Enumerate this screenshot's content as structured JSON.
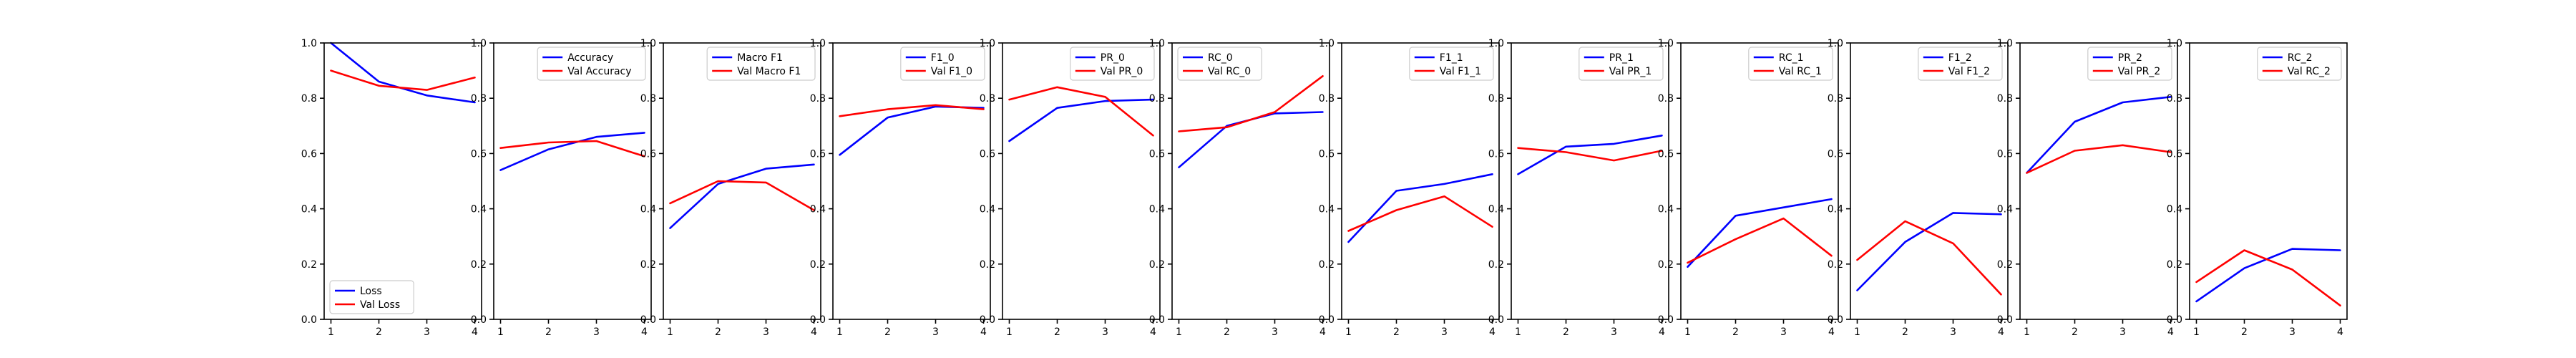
{
  "figure": {
    "colors": {
      "train": "#0000ff",
      "val": "#ff0000"
    }
  },
  "chart_data": [
    {
      "type": "line",
      "x": [
        1,
        2,
        3,
        4
      ],
      "xticks": [
        "1",
        "2",
        "3",
        "4"
      ],
      "ylim": [
        0,
        1.0
      ],
      "yticks": [
        "0.0",
        "0.2",
        "0.4",
        "0.6",
        "0.8",
        "1.0"
      ],
      "legend": "lower-left",
      "series": [
        {
          "name": "Loss",
          "values": [
            1.0,
            0.86,
            0.81,
            0.785
          ]
        },
        {
          "name": "Val Loss",
          "values": [
            0.9,
            0.845,
            0.83,
            0.875
          ]
        }
      ]
    },
    {
      "type": "line",
      "x": [
        1,
        2,
        3,
        4
      ],
      "xticks": [
        "1",
        "2",
        "3",
        "4"
      ],
      "ylim": [
        0,
        1.0
      ],
      "yticks": [
        "0.0",
        "0.2",
        "0.4",
        "0.6",
        "0.8",
        "1.0"
      ],
      "legend": "upper-right",
      "series": [
        {
          "name": "Accuracy",
          "values": [
            0.54,
            0.615,
            0.66,
            0.675
          ]
        },
        {
          "name": "Val Accuracy",
          "values": [
            0.62,
            0.64,
            0.645,
            0.59
          ]
        }
      ]
    },
    {
      "type": "line",
      "x": [
        1,
        2,
        3,
        4
      ],
      "xticks": [
        "1",
        "2",
        "3",
        "4"
      ],
      "ylim": [
        0,
        1.0
      ],
      "yticks": [
        "0.0",
        "0.2",
        "0.4",
        "0.6",
        "0.8",
        "1.0"
      ],
      "legend": "upper-right",
      "series": [
        {
          "name": "Macro F1",
          "values": [
            0.33,
            0.49,
            0.545,
            0.56
          ]
        },
        {
          "name": "Val Macro F1",
          "values": [
            0.42,
            0.5,
            0.495,
            0.395
          ]
        }
      ]
    },
    {
      "type": "line",
      "x": [
        1,
        2,
        3,
        4
      ],
      "xticks": [
        "1",
        "2",
        "3",
        "4"
      ],
      "ylim": [
        0,
        1.0
      ],
      "yticks": [
        "0.0",
        "0.2",
        "0.4",
        "0.6",
        "0.8",
        "1.0"
      ],
      "legend": "upper-right",
      "series": [
        {
          "name": "F1_0",
          "values": [
            0.595,
            0.73,
            0.77,
            0.765
          ]
        },
        {
          "name": "Val F1_0",
          "values": [
            0.735,
            0.76,
            0.775,
            0.76
          ]
        }
      ]
    },
    {
      "type": "line",
      "x": [
        1,
        2,
        3,
        4
      ],
      "xticks": [
        "1",
        "2",
        "3",
        "4"
      ],
      "ylim": [
        0,
        1.0
      ],
      "yticks": [
        "0.0",
        "0.2",
        "0.4",
        "0.6",
        "0.8",
        "1.0"
      ],
      "legend": "upper-right",
      "series": [
        {
          "name": "PR_0",
          "values": [
            0.645,
            0.765,
            0.79,
            0.795
          ]
        },
        {
          "name": "Val PR_0",
          "values": [
            0.795,
            0.84,
            0.805,
            0.665
          ]
        }
      ]
    },
    {
      "type": "line",
      "x": [
        1,
        2,
        3,
        4
      ],
      "xticks": [
        "1",
        "2",
        "3",
        "4"
      ],
      "ylim": [
        0,
        1.0
      ],
      "yticks": [
        "0.0",
        "0.2",
        "0.4",
        "0.6",
        "0.8",
        "1.0"
      ],
      "legend": "upper-left",
      "series": [
        {
          "name": "RC_0",
          "values": [
            0.55,
            0.7,
            0.745,
            0.75
          ]
        },
        {
          "name": "Val RC_0",
          "values": [
            0.68,
            0.695,
            0.75,
            0.88
          ]
        }
      ]
    },
    {
      "type": "line",
      "x": [
        1,
        2,
        3,
        4
      ],
      "xticks": [
        "1",
        "2",
        "3",
        "4"
      ],
      "ylim": [
        0,
        1.0
      ],
      "yticks": [
        "0.0",
        "0.2",
        "0.4",
        "0.6",
        "0.8",
        "1.0"
      ],
      "legend": "upper-right",
      "series": [
        {
          "name": "F1_1",
          "values": [
            0.28,
            0.465,
            0.49,
            0.525
          ]
        },
        {
          "name": "Val F1_1",
          "values": [
            0.32,
            0.395,
            0.445,
            0.335
          ]
        }
      ]
    },
    {
      "type": "line",
      "x": [
        1,
        2,
        3,
        4
      ],
      "xticks": [
        "1",
        "2",
        "3",
        "4"
      ],
      "ylim": [
        0,
        1.0
      ],
      "yticks": [
        "0.0",
        "0.2",
        "0.4",
        "0.6",
        "0.8",
        "1.0"
      ],
      "legend": "upper-right",
      "series": [
        {
          "name": "PR_1",
          "values": [
            0.525,
            0.625,
            0.635,
            0.665
          ]
        },
        {
          "name": "Val PR_1",
          "values": [
            0.62,
            0.605,
            0.575,
            0.61
          ]
        }
      ]
    },
    {
      "type": "line",
      "x": [
        1,
        2,
        3,
        4
      ],
      "xticks": [
        "1",
        "2",
        "3",
        "4"
      ],
      "ylim": [
        0,
        1.0
      ],
      "yticks": [
        "0.0",
        "0.2",
        "0.4",
        "0.6",
        "0.8",
        "1.0"
      ],
      "legend": "upper-right",
      "series": [
        {
          "name": "RC_1",
          "values": [
            0.19,
            0.375,
            0.405,
            0.435
          ]
        },
        {
          "name": "Val RC_1",
          "values": [
            0.205,
            0.29,
            0.365,
            0.23
          ]
        }
      ]
    },
    {
      "type": "line",
      "x": [
        1,
        2,
        3,
        4
      ],
      "xticks": [
        "1",
        "2",
        "3",
        "4"
      ],
      "ylim": [
        0,
        1.0
      ],
      "yticks": [
        "0.0",
        "0.2",
        "0.4",
        "0.6",
        "0.8",
        "1.0"
      ],
      "legend": "upper-right",
      "series": [
        {
          "name": "F1_2",
          "values": [
            0.105,
            0.28,
            0.385,
            0.38
          ]
        },
        {
          "name": "Val F1_2",
          "values": [
            0.215,
            0.355,
            0.275,
            0.09
          ]
        }
      ]
    },
    {
      "type": "line",
      "x": [
        1,
        2,
        3,
        4
      ],
      "xticks": [
        "1",
        "2",
        "3",
        "4"
      ],
      "ylim": [
        0,
        1.0
      ],
      "yticks": [
        "0.0",
        "0.2",
        "0.4",
        "0.6",
        "0.8",
        "1.0"
      ],
      "legend": "upper-right",
      "series": [
        {
          "name": "PR_2",
          "values": [
            0.53,
            0.715,
            0.785,
            0.805
          ]
        },
        {
          "name": "Val PR_2",
          "values": [
            0.53,
            0.61,
            0.63,
            0.605
          ]
        }
      ]
    },
    {
      "type": "line",
      "x": [
        1,
        2,
        3,
        4
      ],
      "xticks": [
        "1",
        "2",
        "3",
        "4"
      ],
      "ylim": [
        0,
        1.0
      ],
      "yticks": [
        "0.0",
        "0.2",
        "0.4",
        "0.6",
        "0.8",
        "1.0"
      ],
      "legend": "upper-right",
      "series": [
        {
          "name": "RC_2",
          "values": [
            0.065,
            0.185,
            0.255,
            0.25
          ]
        },
        {
          "name": "Val RC_2",
          "values": [
            0.135,
            0.25,
            0.18,
            0.05
          ]
        }
      ]
    }
  ]
}
